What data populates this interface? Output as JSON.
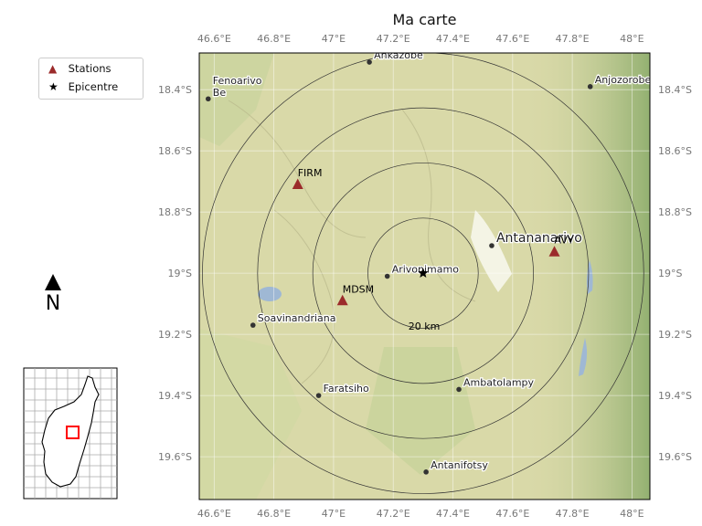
{
  "title": "Ma carte",
  "legend": {
    "stations_label": "Stations",
    "epicentre_label": "Epicentre",
    "stations_color": "#9b2b2b",
    "epicentre_color": "#000000"
  },
  "north_label": "N",
  "scale_label": "20 km",
  "lon_ticks": [
    "46.6°E",
    "46.8°E",
    "47°E",
    "47.2°E",
    "47.4°E",
    "47.6°E",
    "47.8°E",
    "48°E"
  ],
  "lat_ticks": [
    "18.4°S",
    "18.6°S",
    "18.8°S",
    "19°S",
    "19.2°S",
    "19.4°S",
    "19.6°S"
  ],
  "extent": {
    "lon": [
      46.55,
      48.06
    ],
    "lat": [
      -18.28,
      -19.74
    ]
  },
  "stations": [
    {
      "name": "FIRM",
      "lon": 46.88,
      "lat": -18.71
    },
    {
      "name": "MDSM",
      "lon": 47.03,
      "lat": -19.09
    },
    {
      "name": "AVY",
      "lon": 47.74,
      "lat": -18.93
    }
  ],
  "epicentre": {
    "lon": 47.3,
    "lat": -19.0
  },
  "range_rings_km": [
    20,
    40,
    60,
    80
  ],
  "towns": [
    {
      "name": "Ankazobe",
      "lon": 47.12,
      "lat": -18.31
    },
    {
      "name": "Fenoarivo Be",
      "lon": 46.58,
      "lat": -18.43
    },
    {
      "name": "Anjozorobe",
      "lon": 47.86,
      "lat": -18.39
    },
    {
      "name": "Antananarivo",
      "lon": 47.53,
      "lat": -18.91
    },
    {
      "name": "Arivonimamo",
      "lon": 47.18,
      "lat": -19.01
    },
    {
      "name": "Soavinandriana",
      "lon": 46.73,
      "lat": -19.17
    },
    {
      "name": "Faratsiho",
      "lon": 46.95,
      "lat": -19.4
    },
    {
      "name": "Ambatolampy",
      "lon": 47.42,
      "lat": -19.38
    },
    {
      "name": "Antanifotsy",
      "lon": 47.31,
      "lat": -19.65
    }
  ],
  "colors": {
    "terrain": "#d9d9a8",
    "terrain_green": "#a8bf84",
    "water": "#9fb8d4",
    "rings": "#333333",
    "inset_box": "#ff0000"
  }
}
